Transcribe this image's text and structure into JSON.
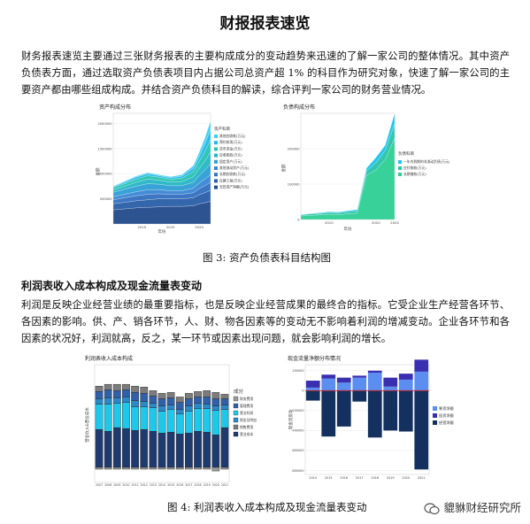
{
  "document": {
    "title": "财报报表速览",
    "paragraph_1": "财务报表速览主要通过三张财务报表的主要构成成分的变动趋势来迅速的了解一家公司的整体情况。其中资产负债表方面，通过选取资产负债表项目内占据公司总资产超 1% 的科目作为研究对象，快速了解一家公司的主要资产都由哪些组成构成。并结合资产负债科目的解读，综合评判一家公司的财务营业情况。",
    "figure3_caption": "图 3: 资产负债表科目结构图",
    "section_heading": "利润表收入成本构成及现金流量表变动",
    "paragraph_2": "利润是反映企业经营业绩的最重要指标，也是反映企业经营成果的最终合的指标。它受企业生产经营各环节、各因素的影响。供、产、销各环节，人、财、物各因素等的变动无不影响着利润的增减变动。企业各环节和各因素的状况好，利润就高，反之，某一环节或因素出现问题，就会影响利润的增长。",
    "figure4_caption": "图 4: 利润表收入成本构成及现金流量表变动",
    "watermark": "貔貅财经研究所"
  },
  "colors": {
    "navy": "#1f3f7a",
    "blue": "#3a78c9",
    "sky": "#4ea3e0",
    "teal": "#31b8c4",
    "cyan": "#1fc9e6",
    "green": "#2ecf94",
    "gray": "#9aa0a6",
    "dark_navy": "#13305e",
    "bright_blue": "#4aa3f7"
  },
  "chart_data": [
    {
      "type": "area",
      "title": "资产构成分布",
      "xlabel": "年份",
      "ylabel": "金额",
      "x": [
        2005,
        2007,
        2009,
        2011,
        2013,
        2015,
        2017,
        2019,
        2020,
        2021,
        2022
      ],
      "xticks": [
        "2010",
        "2015",
        "2020"
      ],
      "yticks": [
        "500000",
        "1000000",
        "1500000",
        "2000000"
      ],
      "ylim": [
        0,
        2200000
      ],
      "legend_title": "资产科目",
      "series": [
        {
          "name": "无形资产净额(万元)",
          "values": [
            280000,
            300000,
            320000,
            330000,
            340000,
            350000,
            350000,
            360000,
            400000,
            420000,
            450000
          ]
        },
        {
          "name": "在建工程(万元)",
          "values": [
            120000,
            130000,
            140000,
            150000,
            160000,
            150000,
            150000,
            160000,
            180000,
            200000,
            220000
          ]
        },
        {
          "name": "长期应收款(万元)",
          "values": [
            80000,
            90000,
            100000,
            110000,
            100000,
            90000,
            90000,
            100000,
            120000,
            140000,
            160000
          ]
        },
        {
          "name": "其他流动资产(万元)",
          "values": [
            60000,
            70000,
            80000,
            90000,
            80000,
            70000,
            70000,
            90000,
            110000,
            130000,
            150000
          ]
        },
        {
          "name": "固定资产(万元)",
          "values": [
            90000,
            100000,
            110000,
            120000,
            110000,
            100000,
            100000,
            120000,
            150000,
            180000,
            220000
          ]
        },
        {
          "name": "应收账款(万元)",
          "values": [
            50000,
            60000,
            80000,
            90000,
            80000,
            70000,
            80000,
            110000,
            140000,
            180000,
            230000
          ]
        },
        {
          "name": "货币资金(万元)",
          "values": [
            40000,
            50000,
            60000,
            70000,
            60000,
            60000,
            70000,
            100000,
            140000,
            190000,
            250000
          ]
        },
        {
          "name": "预付款项(万元)",
          "values": [
            20000,
            30000,
            40000,
            40000,
            30000,
            30000,
            40000,
            70000,
            100000,
            150000,
            200000
          ]
        },
        {
          "name": "其他应收款(万元)",
          "values": [
            10000,
            20000,
            20000,
            20000,
            20000,
            20000,
            30000,
            50000,
            80000,
            120000,
            170000
          ]
        }
      ]
    },
    {
      "type": "area",
      "title": "负债构成分布",
      "xlabel": "年份",
      "ylabel": "金额",
      "x": [
        2004,
        2006,
        2008,
        2010,
        2012,
        2014,
        2016,
        2018,
        2020,
        2022,
        2024
      ],
      "xticks": [
        "2010",
        "2020",
        "2024"
      ],
      "yticks": [
        "0",
        "100000",
        "200000"
      ],
      "ylim": [
        0,
        300000
      ],
      "legend_title": "负债科目",
      "series": [
        {
          "name": "长期借款(万元)",
          "values": [
            10000,
            12000,
            13000,
            15000,
            14000,
            16000,
            18000,
            125000,
            140000,
            170000,
            230000
          ]
        },
        {
          "name": "应付账款(万元)",
          "values": [
            3000,
            4000,
            4000,
            5000,
            5000,
            6000,
            7000,
            12000,
            20000,
            25000,
            40000
          ]
        },
        {
          "name": "一年内到期的非流动负债(万元)",
          "values": [
            1000,
            1000,
            2000,
            2000,
            2000,
            3000,
            3000,
            8000,
            15000,
            15000,
            30000
          ]
        }
      ]
    },
    {
      "type": "bar",
      "title": "利润表收入成本构成",
      "ylabel": "营业收入&营业成本",
      "categories": [
        "2007",
        "2008",
        "2009",
        "2010",
        "2011",
        "2012",
        "2013",
        "2014",
        "2015",
        "2016",
        "2017",
        "2018",
        "2019",
        "2020",
        "2021"
      ],
      "legend_title": "成分",
      "series": [
        {
          "name": "营业成本",
          "values": [
            42,
            40,
            44,
            43,
            41,
            42,
            40,
            38,
            39,
            37,
            38,
            40,
            39,
            36,
            44
          ]
        },
        {
          "name": "财务费用",
          "values": [
            -2,
            -2,
            -2,
            -2,
            -2,
            -2,
            -2,
            -2,
            -2,
            -2,
            -2,
            -2,
            -2,
            -4,
            -2
          ]
        },
        {
          "name": "营业利润",
          "values": [
            28,
            30,
            27,
            29,
            26,
            25,
            26,
            24,
            25,
            22,
            24,
            25,
            26,
            27,
            20
          ]
        },
        {
          "name": "税金及附加",
          "values": [
            6,
            7,
            6,
            6,
            7,
            6,
            5,
            6,
            5,
            5,
            6,
            6,
            5,
            5,
            5
          ]
        },
        {
          "name": "管理费用",
          "values": [
            8,
            9,
            8,
            8,
            9,
            9,
            8,
            8,
            8,
            8,
            8,
            7,
            8,
            8,
            7
          ]
        },
        {
          "name": "销售费用",
          "values": [
            6,
            6,
            7,
            6,
            7,
            7,
            6,
            6,
            6,
            6,
            6,
            6,
            7,
            7,
            5
          ]
        }
      ]
    },
    {
      "type": "bar",
      "title": "现金流量净额分布情况",
      "ylabel": "现金流变动",
      "categories": [
        "2014",
        "2015",
        "2016",
        "2017",
        "2018",
        "2019",
        "2020",
        "2021"
      ],
      "yticks": [
        "200000",
        "0",
        "-200000",
        "-400000",
        "-600000",
        "-800000"
      ],
      "ylim": [
        -840000,
        260000
      ],
      "legend_title": "",
      "series": [
        {
          "name": "筹资净额",
          "values": [
            30000,
            120000,
            80000,
            130000,
            180000,
            40000,
            110000,
            190000
          ]
        },
        {
          "name": "投资净额",
          "values": [
            70000,
            40000,
            50000,
            20000,
            20000,
            90000,
            60000,
            120000
          ]
        },
        {
          "name": "经营净额",
          "values": [
            -100000,
            -460000,
            -360000,
            -110000,
            -470000,
            -400000,
            -410000,
            -790000
          ]
        }
      ]
    }
  ]
}
